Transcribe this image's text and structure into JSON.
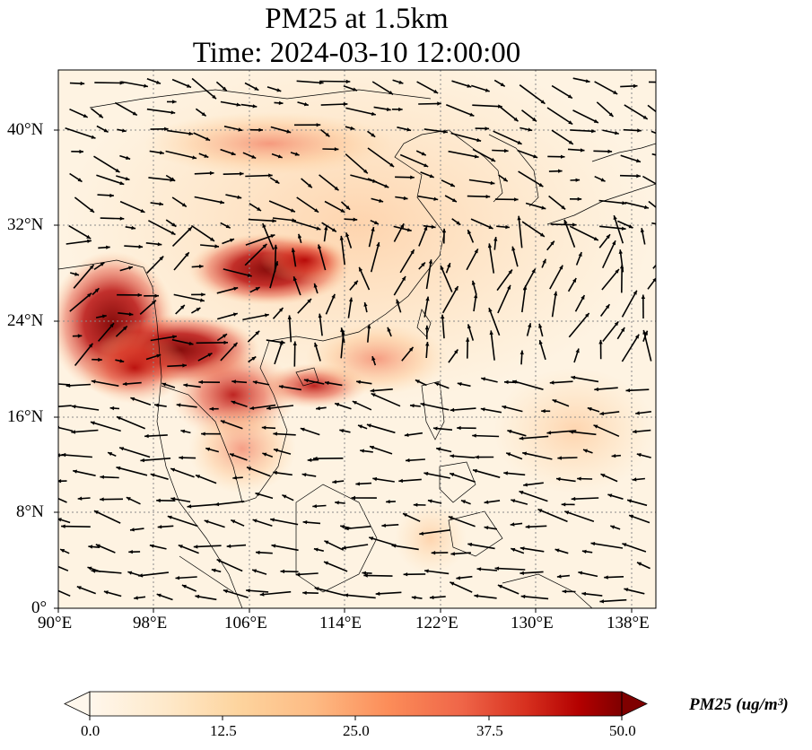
{
  "title": {
    "line1": "PM25 at 1.5km",
    "line2": "Time: 2024-03-10 12:00:00"
  },
  "map": {
    "variable": "PM25",
    "level": "1.5km",
    "time": "2024-03-10 12:00:00",
    "lon_range": [
      90,
      140
    ],
    "lat_range": [
      0,
      45
    ],
    "x_ticks": [
      "90°E",
      "98°E",
      "106°E",
      "114°E",
      "122°E",
      "130°E",
      "138°E"
    ],
    "y_ticks": [
      "0°",
      "8°N",
      "16°N",
      "24°N",
      "32°N",
      "40°N"
    ],
    "gridlines": true,
    "colormap": "OrRd",
    "vectors": "wind arrows"
  },
  "colorbar": {
    "label": "PM25 (ug/m³)",
    "ticks": [
      "0.0",
      "12.5",
      "25.0",
      "37.5",
      "50.0"
    ],
    "min": 0,
    "max": 50,
    "extend": "both"
  },
  "colors": {
    "low": "#fff7ec",
    "mid_low": "#fdd49e",
    "mid": "#fc8d59",
    "mid_high": "#d7301f",
    "high": "#7f0000"
  }
}
